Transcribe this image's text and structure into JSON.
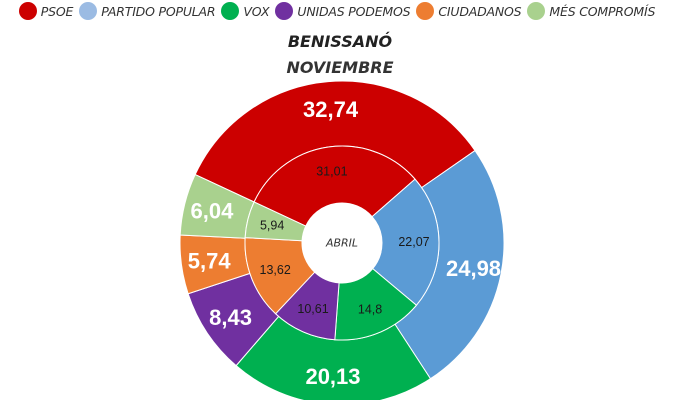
{
  "title": "BENISSANÓ",
  "subtitle": "NOVIEMBRE",
  "center_label": "ABRIL",
  "legend": [
    {
      "label": "PSOE",
      "color": "#cc0000"
    },
    {
      "label": "PARTIDO POPULAR",
      "color": "#9bbbe3"
    },
    {
      "label": "VOX",
      "color": "#00a84f"
    },
    {
      "label": "UNIDAS PODEMOS",
      "color": "#7030a0"
    },
    {
      "label": "CIUDADANOS",
      "color": "#ee8434"
    },
    {
      "label": "MÉS COMPROMÍS",
      "color": "#a3d28a"
    }
  ],
  "chart_data": {
    "type": "pie",
    "subtype": "nested-donut",
    "title": "BENISSANÓ",
    "subtitle": "NOVIEMBRE",
    "center_label": "ABRIL",
    "categories": [
      "PSOE",
      "PARTIDO POPULAR",
      "VOX",
      "UNIDAS PODEMOS",
      "CIUDADANOS",
      "MÉS COMPROMÍS"
    ],
    "colors": [
      "#cc0000",
      "#5b9bd5",
      "#00b050",
      "#7030a0",
      "#ed7d31",
      "#a9d18e"
    ],
    "series": [
      {
        "name": "NOVIEMBRE",
        "ring": "outer",
        "values": [
          32.74,
          24.98,
          20.13,
          8.43,
          5.74,
          6.04
        ],
        "labels": [
          "32,74",
          "24,98",
          "20,13",
          "8,43",
          "5,74",
          "6,04"
        ]
      },
      {
        "name": "ABRIL",
        "ring": "inner",
        "values": [
          31.01,
          22.07,
          14.8,
          10.61,
          13.62,
          5.94
        ],
        "labels": [
          "31,01",
          "22,07",
          "14,8",
          "10,61",
          "13,62",
          "5,94"
        ]
      }
    ],
    "legend_position": "top"
  }
}
